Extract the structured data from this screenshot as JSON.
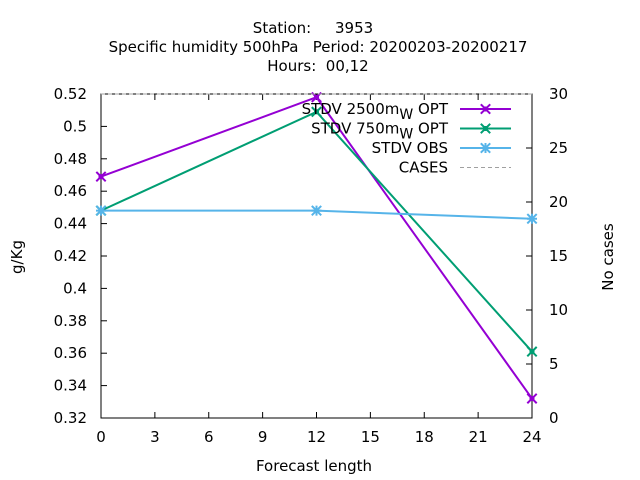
{
  "chart_data": {
    "type": "line",
    "title_lines": [
      "Station:     3953",
      "Specific humidity 500hPa   Period: 20200203-20200217",
      "Hours:  00,12"
    ],
    "xlabel": "Forecast length",
    "ylabel": "g/Kg",
    "y2label": "No cases",
    "xlim": [
      0,
      24
    ],
    "ylim": [
      0.32,
      0.52
    ],
    "y2lim": [
      0,
      30
    ],
    "xticks": [
      "0",
      "3",
      "6",
      "9",
      "12",
      "15",
      "18",
      "21",
      "24"
    ],
    "yticks": [
      "0.32",
      "0.34",
      "0.36",
      "0.38",
      "0.4",
      "0.42",
      "0.44",
      "0.46",
      "0.48",
      "0.5",
      "0.52"
    ],
    "y2ticks": [
      "0",
      "5",
      "10",
      "15",
      "20",
      "25",
      "30"
    ],
    "grid": false,
    "legend_position": "top-right",
    "series": [
      {
        "name": "STDV 2500m_W OPT",
        "label_main": "STDV 2500m",
        "label_sub": "W",
        "label_tail": " OPT",
        "axis": "y",
        "color": "#9400d3",
        "marker": "cross",
        "x": [
          0,
          12,
          24
        ],
        "values": [
          0.469,
          0.518,
          0.332
        ]
      },
      {
        "name": "STDV 750m_W OPT",
        "label_main": "STDV 750m",
        "label_sub": "W",
        "label_tail": " OPT",
        "axis": "y",
        "color": "#009e73",
        "marker": "cross",
        "x": [
          0,
          12,
          24
        ],
        "values": [
          0.448,
          0.509,
          0.361
        ]
      },
      {
        "name": "STDV OBS",
        "label_main": "STDV OBS",
        "label_sub": "",
        "label_tail": "",
        "axis": "y",
        "color": "#56b4e9",
        "marker": "star",
        "x": [
          0,
          12,
          24
        ],
        "values": [
          0.448,
          0.448,
          0.443
        ]
      },
      {
        "name": "CASES",
        "label_main": "CASES",
        "label_sub": "",
        "label_tail": "",
        "axis": "y2",
        "color": "#a0a0a0",
        "dashed": true,
        "marker": "none",
        "x": [
          0,
          12,
          24
        ],
        "values": [
          30,
          30,
          30
        ]
      }
    ]
  }
}
